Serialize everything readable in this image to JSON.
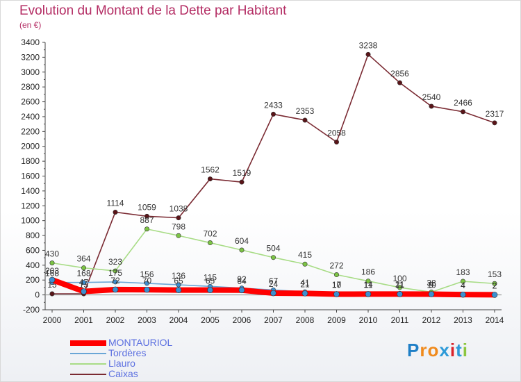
{
  "title": "Evolution du Montant de la Dette par Habitant",
  "subtitle": "(en €)",
  "logo": "Proxiti",
  "chart_data": {
    "type": "line",
    "categories": [
      "2000",
      "2001",
      "2002",
      "2003",
      "2004",
      "2005",
      "2006",
      "2007",
      "2008",
      "2009",
      "2010",
      "2011",
      "2012",
      "2013",
      "2014"
    ],
    "ylim": [
      -200,
      3400
    ],
    "yticks": [
      -200,
      0,
      200,
      400,
      600,
      800,
      1000,
      1200,
      1400,
      1600,
      1800,
      2000,
      2200,
      2400,
      2600,
      2800,
      3000,
      3200,
      3400
    ],
    "grid": false,
    "legend_position": "bottom-left",
    "series": [
      {
        "name": "Caixas",
        "color": "#7a2a32",
        "marker": "#5a1418",
        "values": [
          15,
          15,
          1114,
          1059,
          1038,
          1562,
          1519,
          2433,
          2353,
          2058,
          3238,
          2856,
          2540,
          2466,
          2317
        ],
        "labels": [
          "15",
          "15",
          "1114",
          "1059",
          "1038",
          "1562",
          "1519",
          "2433",
          "2353",
          "2058",
          "3238",
          "2856",
          "2540",
          "2466",
          "2317"
        ]
      },
      {
        "name": "Llauro",
        "color": "#a8dc86",
        "marker": "#7cc444",
        "values": [
          430,
          364,
          323,
          887,
          798,
          702,
          604,
          504,
          415,
          272,
          186,
          100,
          38,
          183,
          153
        ],
        "labels": [
          "430",
          "364",
          "323",
          "887",
          "798",
          "702",
          "604",
          "504",
          "415",
          "272",
          "186",
          "100",
          "38",
          "183",
          "153"
        ]
      },
      {
        "name": "Tordères",
        "color": "#6aa6d6",
        "marker": "#3d8fd0",
        "values": [
          168,
          168,
          175,
          156,
          136,
          115,
          92,
          67,
          41,
          17,
          14,
          21,
          9,
          4,
          2
        ],
        "labels": [
          "168",
          "168",
          "175",
          "156",
          "136",
          "115",
          "92",
          "67",
          "41",
          "17",
          "14",
          "21",
          "9",
          "4",
          "2"
        ]
      },
      {
        "name": "MONTAURIOL",
        "color": "#ff0000",
        "marker": "#3d8fd0",
        "values": [
          203,
          47,
          72,
          70,
          65,
          65,
          64,
          24,
          21,
          10,
          11,
          11,
          10,
          4,
          2
        ],
        "labels": [
          "203",
          "47",
          "72",
          "70",
          "65",
          "65",
          "64",
          "24",
          "21",
          "10",
          "11",
          "11",
          "10",
          "4",
          "2"
        ]
      }
    ]
  },
  "legend": [
    {
      "name": "MONTAURIOL",
      "color": "#ff0000",
      "width": 8
    },
    {
      "name": "Tordères",
      "color": "#6aa6d6",
      "width": 2
    },
    {
      "name": "Llauro",
      "color": "#a8dc86",
      "width": 2
    },
    {
      "name": "Caixas",
      "color": "#7a2a32",
      "width": 2
    }
  ]
}
